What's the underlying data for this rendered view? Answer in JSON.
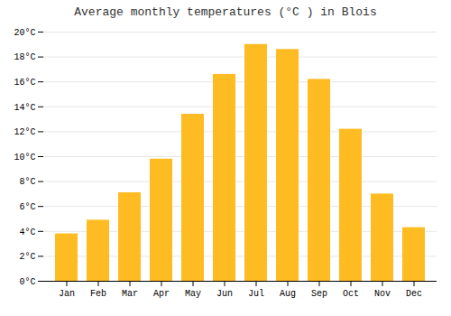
{
  "chart_data": {
    "type": "bar",
    "title": "Average monthly temperatures (°C ) in Blois",
    "categories": [
      "Jan",
      "Feb",
      "Mar",
      "Apr",
      "May",
      "Jun",
      "Jul",
      "Aug",
      "Sep",
      "Oct",
      "Nov",
      "Dec"
    ],
    "values": [
      3.8,
      4.9,
      7.1,
      9.8,
      13.4,
      16.6,
      19.0,
      18.6,
      16.2,
      12.2,
      7.0,
      4.3
    ],
    "color": "#FFBB22",
    "ylim": [
      0,
      20
    ],
    "yticks": [
      {
        "value": 0,
        "label": "0°C"
      },
      {
        "value": 2,
        "label": "2°C"
      },
      {
        "value": 4,
        "label": "4°C"
      },
      {
        "value": 6,
        "label": "6°C"
      },
      {
        "value": 8,
        "label": "8°C"
      },
      {
        "value": 10,
        "label": "10°C"
      },
      {
        "value": 12,
        "label": "12°C"
      },
      {
        "value": 14,
        "label": "14°C"
      },
      {
        "value": 16,
        "label": "16°C"
      },
      {
        "value": 18,
        "label": "18°C"
      },
      {
        "value": 20,
        "label": "20°C"
      }
    ],
    "grid": true
  }
}
